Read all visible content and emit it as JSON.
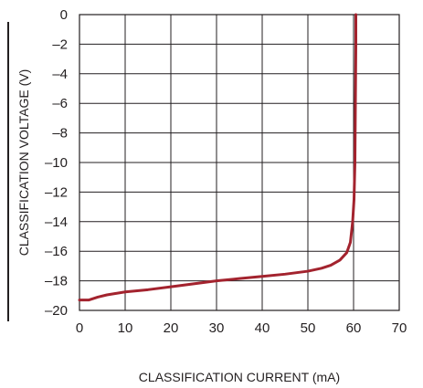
{
  "chart_data": {
    "type": "line",
    "xlabel": "CLASSIFICATION CURRENT (mA)",
    "ylabel": "CLASSIFICATION VOLTAGE (V)",
    "xlim": [
      0,
      70
    ],
    "ylim": [
      -20,
      0
    ],
    "xticks": [
      0,
      10,
      20,
      30,
      40,
      50,
      60,
      70
    ],
    "yticks": [
      0,
      -2,
      -4,
      -6,
      -8,
      -10,
      -12,
      -14,
      -16,
      -18,
      -20
    ],
    "xtick_labels": [
      "0",
      "10",
      "20",
      "30",
      "40",
      "50",
      "60",
      "70"
    ],
    "ytick_labels": [
      "0",
      "–2",
      "–4",
      "–6",
      "–8",
      "–10",
      "–12",
      "–14",
      "–16",
      "–18",
      "–20"
    ],
    "grid": true,
    "series": [
      {
        "color": "#a3232e",
        "x": [
          0,
          2,
          4,
          6,
          8,
          10,
          15,
          20,
          25,
          30,
          35,
          40,
          45,
          50,
          53,
          55,
          57,
          58.5,
          59.3,
          59.8,
          60.1,
          60.3,
          60.4,
          60.5,
          60.5
        ],
        "y": [
          -19.3,
          -19.3,
          -19.1,
          -18.95,
          -18.85,
          -18.75,
          -18.6,
          -18.4,
          -18.2,
          -18.0,
          -17.85,
          -17.7,
          -17.55,
          -17.35,
          -17.15,
          -16.95,
          -16.6,
          -16.1,
          -15.4,
          -14.0,
          -12.5,
          -10.0,
          -6.0,
          -2.0,
          0
        ]
      }
    ]
  }
}
